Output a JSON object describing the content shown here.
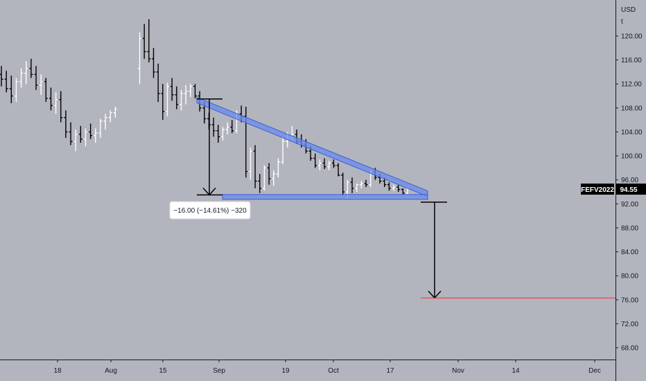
{
  "chart_data": {
    "type": "candlestick",
    "y_axis": {
      "currency": "USD",
      "unit": "t",
      "ticks": [
        "120.00",
        "116.00",
        "112.00",
        "108.00",
        "104.00",
        "100.00",
        "96.00",
        "92.00",
        "88.00",
        "84.00",
        "80.00",
        "76.00",
        "72.00",
        "68.00"
      ],
      "range": [
        64.8,
        125.5
      ]
    },
    "x_axis": {
      "ticks": [
        "18",
        "Aug",
        "15",
        "Sep",
        "19",
        "Oct",
        "17",
        "Nov",
        "14",
        "Dec"
      ]
    },
    "symbol": "FEFV2022",
    "last_price": "94.55",
    "measurement": {
      "label": "−16.00 (−14.61%) −320",
      "from_price": 109.5,
      "to_price": 93.5
    },
    "pattern": {
      "name": "descending triangle",
      "upper_line": [
        [
          109.3,
          "2022-08-29"
        ],
        [
          93.7,
          "2022-10-25"
        ]
      ],
      "support_price": 93.1
    },
    "projection": {
      "from_price": 92.3,
      "to_price": 76.3
    },
    "target_line": {
      "price": 76.3,
      "color": "#f23645"
    },
    "colors": {
      "background": "#b2b5be",
      "up_bar": "#ffffff",
      "down_bar": "#000000",
      "pattern_fill": "#6a8bec",
      "pattern_stroke": "#3f5fd8",
      "badge_bg": "#000000"
    },
    "ohlc": [
      [
        113.6,
        115.0,
        111.6,
        112.8
      ],
      [
        112.8,
        114.2,
        110.6,
        111.2
      ],
      [
        111.2,
        113.4,
        108.8,
        110.0
      ],
      [
        110.0,
        113.0,
        109.0,
        112.4
      ],
      [
        112.4,
        114.6,
        111.4,
        113.8
      ],
      [
        113.8,
        115.8,
        112.0,
        114.6
      ],
      [
        114.6,
        116.2,
        113.0,
        113.6
      ],
      [
        113.6,
        115.0,
        111.0,
        111.8
      ],
      [
        111.8,
        113.6,
        110.2,
        112.4
      ],
      [
        112.4,
        113.0,
        109.0,
        109.6
      ],
      [
        109.6,
        111.4,
        107.6,
        108.4
      ],
      [
        108.4,
        110.6,
        107.0,
        109.4
      ],
      [
        109.4,
        110.8,
        105.6,
        106.4
      ],
      [
        106.4,
        107.6,
        103.0,
        104.0
      ],
      [
        104.0,
        105.6,
        101.8,
        102.4
      ],
      [
        102.4,
        104.4,
        100.8,
        103.6
      ],
      [
        103.6,
        105.0,
        102.2,
        102.8
      ],
      [
        102.8,
        104.6,
        101.6,
        104.0
      ],
      [
        104.0,
        105.4,
        102.8,
        103.4
      ],
      [
        103.4,
        104.6,
        102.2,
        103.8
      ],
      [
        103.8,
        106.2,
        103.0,
        105.8
      ],
      [
        105.8,
        107.0,
        104.4,
        106.4
      ],
      [
        106.4,
        107.6,
        105.6,
        107.2
      ],
      [
        107.2,
        108.2,
        106.4,
        107.8
      ],
      [
        114.6,
        120.6,
        112.0,
        119.6
      ],
      [
        119.6,
        122.0,
        116.2,
        117.4
      ],
      [
        117.4,
        122.8,
        115.6,
        116.2
      ],
      [
        116.2,
        118.0,
        113.0,
        114.0
      ],
      [
        114.0,
        115.4,
        109.0,
        110.4
      ],
      [
        110.4,
        112.0,
        106.0,
        107.4
      ],
      [
        107.4,
        112.2,
        106.6,
        111.6
      ],
      [
        111.6,
        113.0,
        109.2,
        110.2
      ],
      [
        110.2,
        111.6,
        107.8,
        108.6
      ],
      [
        108.6,
        111.0,
        107.6,
        110.4
      ],
      [
        110.4,
        111.8,
        108.6,
        110.8
      ],
      [
        110.8,
        112.0,
        109.8,
        111.6
      ],
      [
        111.6,
        112.0,
        109.6,
        110.0
      ],
      [
        110.0,
        110.8,
        107.4,
        108.0
      ],
      [
        108.0,
        109.0,
        105.4,
        106.2
      ],
      [
        106.2,
        107.2,
        104.4,
        105.2
      ],
      [
        105.2,
        106.4,
        103.2,
        104.2
      ],
      [
        104.2,
        105.2,
        102.2,
        103.2
      ],
      [
        103.2,
        104.8,
        102.6,
        104.4
      ],
      [
        104.4,
        105.6,
        103.6,
        104.8
      ],
      [
        104.8,
        106.0,
        103.8,
        104.2
      ],
      [
        104.2,
        107.6,
        103.8,
        107.0
      ],
      [
        107.0,
        108.4,
        105.6,
        106.6
      ],
      [
        106.6,
        108.2,
        96.4,
        97.4
      ],
      [
        97.4,
        101.4,
        96.0,
        100.8
      ],
      [
        100.8,
        101.8,
        94.6,
        95.8
      ],
      [
        95.8,
        97.0,
        93.8,
        94.6
      ],
      [
        94.6,
        98.4,
        94.2,
        98.0
      ],
      [
        98.0,
        98.8,
        95.2,
        96.2
      ],
      [
        96.2,
        97.6,
        95.0,
        97.0
      ],
      [
        97.0,
        99.6,
        96.4,
        99.0
      ],
      [
        99.0,
        103.0,
        98.6,
        102.4
      ],
      [
        102.4,
        104.0,
        101.4,
        103.0
      ],
      [
        103.0,
        105.0,
        102.4,
        103.6
      ],
      [
        103.6,
        104.4,
        102.0,
        102.4
      ],
      [
        102.4,
        103.6,
        101.4,
        101.8
      ],
      [
        101.8,
        102.8,
        100.4,
        100.8
      ],
      [
        100.8,
        101.6,
        99.2,
        99.6
      ],
      [
        99.6,
        100.4,
        98.0,
        98.4
      ],
      [
        98.4,
        99.4,
        97.6,
        98.8
      ],
      [
        98.8,
        99.6,
        97.8,
        98.2
      ],
      [
        98.2,
        99.2,
        97.6,
        98.8
      ],
      [
        98.8,
        99.4,
        98.0,
        98.4
      ],
      [
        98.4,
        98.8,
        96.6,
        96.8
      ],
      [
        96.8,
        97.2,
        93.4,
        94.0
      ],
      [
        94.0,
        96.0,
        92.8,
        95.6
      ],
      [
        95.6,
        96.4,
        93.8,
        94.6
      ],
      [
        94.6,
        95.4,
        94.0,
        95.2
      ],
      [
        95.2,
        95.8,
        94.6,
        95.4
      ],
      [
        95.4,
        96.0,
        94.8,
        95.2
      ],
      [
        95.2,
        97.8,
        94.8,
        97.4
      ],
      [
        97.4,
        98.0,
        96.0,
        96.4
      ],
      [
        96.4,
        97.0,
        95.4,
        95.8
      ],
      [
        95.8,
        96.4,
        94.8,
        95.2
      ],
      [
        95.2,
        95.6,
        94.2,
        94.6
      ],
      [
        94.6,
        95.2,
        94.2,
        94.8
      ],
      [
        94.8,
        95.2,
        94.0,
        94.4
      ],
      [
        94.4,
        94.6,
        93.6,
        93.8
      ],
      [
        93.8,
        94.8,
        93.6,
        94.55
      ]
    ]
  }
}
